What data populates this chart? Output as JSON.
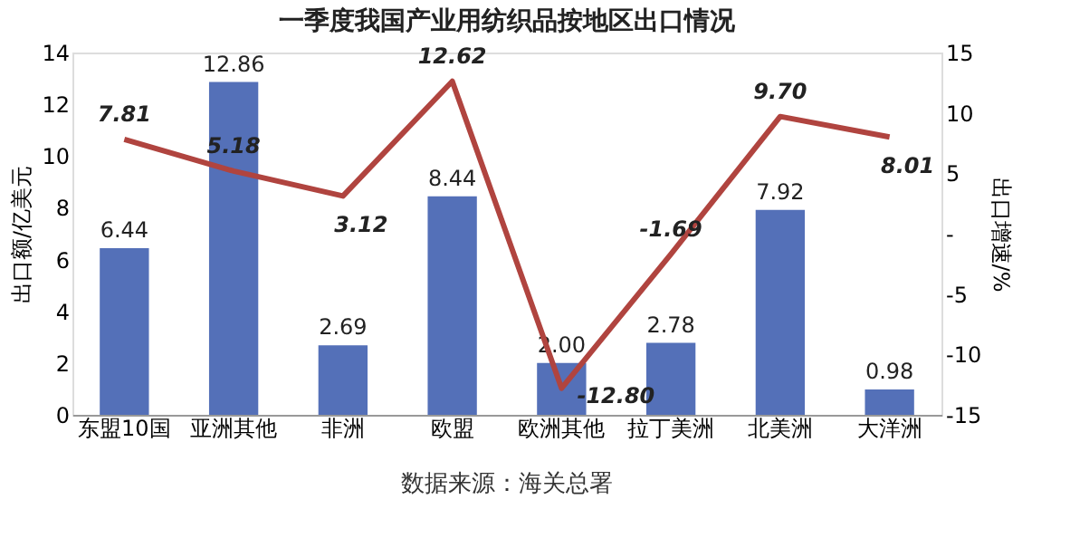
{
  "chart_data": {
    "type": "bar",
    "title": "一季度我国产业用纺织品按地区出口情况",
    "ylabel": "出口额/亿美元",
    "y2label": "出口增速/%",
    "categories": [
      "东盟10国",
      "亚洲其他",
      "非洲",
      "欧盟",
      "欧洲其他",
      "拉丁美洲",
      "北美洲",
      "大洋洲"
    ],
    "series": [
      {
        "color": "#5470b8",
        "values": [
          6.44,
          12.86,
          2.69,
          8.44,
          2.0,
          2.78,
          7.92,
          0.98
        ],
        "value_labels": [
          "6.44",
          "12.86",
          "2.69",
          "8.44",
          "2.00",
          "2.78",
          "7.92",
          "0.98"
        ]
      },
      {
        "type": "line",
        "axis": "y2",
        "color": "#b0443f",
        "values": [
          7.81,
          5.18,
          3.12,
          12.62,
          -12.8,
          -1.69,
          9.7,
          8.01
        ],
        "value_labels": [
          "7.81",
          "5.18",
          "3.12",
          "12.62",
          "-12.80",
          "-1.69",
          "9.70",
          "8.01"
        ]
      }
    ],
    "ylim": [
      0,
      14
    ],
    "yticks": [
      0,
      2,
      4,
      6,
      8,
      10,
      12,
      14
    ],
    "y2lim": [
      -15,
      15
    ],
    "y2ticks": [
      -15,
      -10,
      -5,
      {
        "value": 0,
        "label": "-"
      },
      5,
      10,
      15
    ],
    "grid": false,
    "annotations": [
      "数据来源：海关总署"
    ]
  }
}
